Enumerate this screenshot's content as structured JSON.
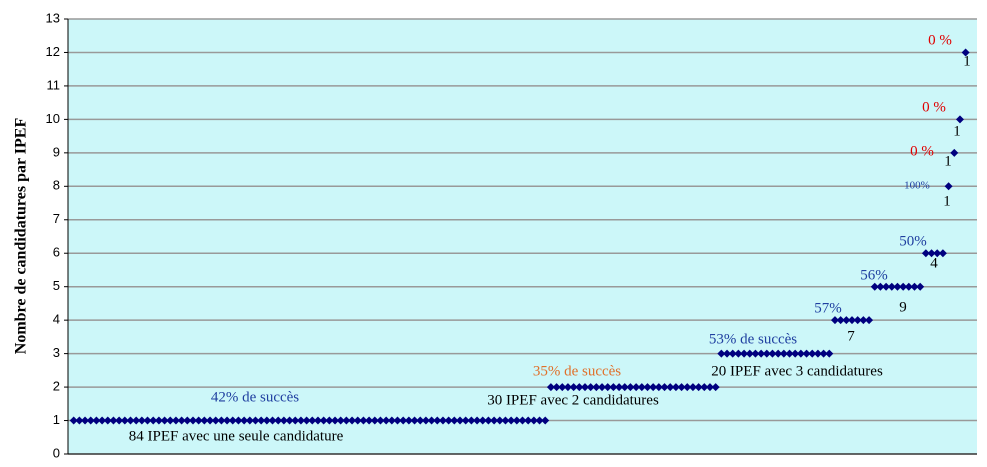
{
  "chart_data": {
    "type": "scatter",
    "y_label": "Nombre de candidatures par IPEF",
    "color": "#00007f",
    "background": "#ccf7f9",
    "grid": true,
    "xlim": [
      0,
      160
    ],
    "ylim": [
      0,
      13
    ],
    "yticks": [
      0,
      1,
      2,
      3,
      4,
      5,
      6,
      7,
      8,
      9,
      10,
      11,
      12,
      13
    ],
    "x": [
      1,
      2,
      3,
      4,
      5,
      6,
      7,
      8,
      9,
      10,
      11,
      12,
      13,
      14,
      15,
      16,
      17,
      18,
      19,
      20,
      21,
      22,
      23,
      24,
      25,
      26,
      27,
      28,
      29,
      30,
      31,
      32,
      33,
      34,
      35,
      36,
      37,
      38,
      39,
      40,
      41,
      42,
      43,
      44,
      45,
      46,
      47,
      48,
      49,
      50,
      51,
      52,
      53,
      54,
      55,
      56,
      57,
      58,
      59,
      60,
      61,
      62,
      63,
      64,
      65,
      66,
      67,
      68,
      69,
      70,
      71,
      72,
      73,
      74,
      75,
      76,
      77,
      78,
      79,
      80,
      81,
      82,
      83,
      84,
      85,
      86,
      87,
      88,
      89,
      90,
      91,
      92,
      93,
      94,
      95,
      96,
      97,
      98,
      99,
      100,
      101,
      102,
      103,
      104,
      105,
      106,
      107,
      108,
      109,
      110,
      111,
      112,
      113,
      114,
      115,
      116,
      117,
      118,
      119,
      120,
      121,
      122,
      123,
      124,
      125,
      126,
      127,
      128,
      129,
      130,
      131,
      132,
      133,
      134,
      135,
      136,
      137,
      138,
      139,
      140,
      141,
      142,
      143,
      144,
      145,
      146,
      147,
      148,
      149,
      150,
      151,
      152,
      153,
      154,
      155,
      156,
      157,
      158
    ],
    "values": [
      1,
      1,
      1,
      1,
      1,
      1,
      1,
      1,
      1,
      1,
      1,
      1,
      1,
      1,
      1,
      1,
      1,
      1,
      1,
      1,
      1,
      1,
      1,
      1,
      1,
      1,
      1,
      1,
      1,
      1,
      1,
      1,
      1,
      1,
      1,
      1,
      1,
      1,
      1,
      1,
      1,
      1,
      1,
      1,
      1,
      1,
      1,
      1,
      1,
      1,
      1,
      1,
      1,
      1,
      1,
      1,
      1,
      1,
      1,
      1,
      1,
      1,
      1,
      1,
      1,
      1,
      1,
      1,
      1,
      1,
      1,
      1,
      1,
      1,
      1,
      1,
      1,
      1,
      1,
      1,
      1,
      1,
      1,
      1,
      2,
      2,
      2,
      2,
      2,
      2,
      2,
      2,
      2,
      2,
      2,
      2,
      2,
      2,
      2,
      2,
      2,
      2,
      2,
      2,
      2,
      2,
      2,
      2,
      2,
      2,
      2,
      2,
      2,
      2,
      3,
      3,
      3,
      3,
      3,
      3,
      3,
      3,
      3,
      3,
      3,
      3,
      3,
      3,
      3,
      3,
      3,
      3,
      3,
      3,
      4,
      4,
      4,
      4,
      4,
      4,
      4,
      5,
      5,
      5,
      5,
      5,
      5,
      5,
      5,
      5,
      6,
      6,
      6,
      6,
      8,
      9,
      10,
      12
    ],
    "annotations": [
      {
        "text": "42% de succès",
        "color": "#1f3fa0"
      },
      {
        "text": "84 IPEF avec une seule candidature",
        "color": "#000000"
      },
      {
        "text": "35% de succès",
        "color": "#e0702a"
      },
      {
        "text": "30 IPEF avec 2 candidatures",
        "color": "#000000"
      },
      {
        "text": "53% de succès",
        "color": "#1f3fa0"
      },
      {
        "text": "20 IPEF avec 3 candidatures",
        "color": "#000000"
      },
      {
        "text": "57%",
        "color": "#1f3fa0"
      },
      {
        "text": "7",
        "color": "#000000"
      },
      {
        "text": "56%",
        "color": "#1f3fa0"
      },
      {
        "text": "9",
        "color": "#000000"
      },
      {
        "text": "50%",
        "color": "#1f3fa0"
      },
      {
        "text": "4",
        "color": "#000000"
      },
      {
        "text": "100%",
        "color": "#1f3fa0"
      },
      {
        "text": "1",
        "color": "#000000"
      },
      {
        "text": "0 %",
        "color": "#e00000"
      },
      {
        "text": "1",
        "color": "#000000"
      },
      {
        "text": "0 %",
        "color": "#e00000"
      },
      {
        "text": "1",
        "color": "#000000"
      },
      {
        "text": "0 %",
        "color": "#e00000"
      },
      {
        "text": "1",
        "color": "#000000"
      }
    ]
  }
}
